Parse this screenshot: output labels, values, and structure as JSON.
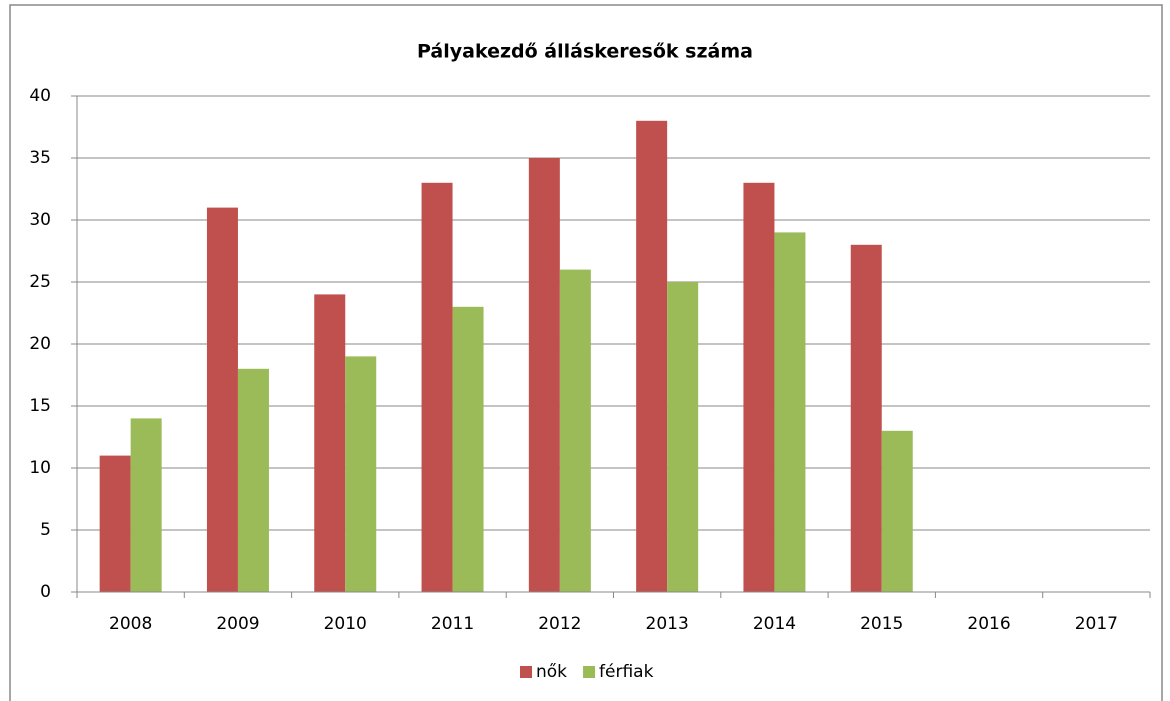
{
  "chart_data": {
    "type": "bar",
    "title": "Pályakezdő álláskeresők száma",
    "categories": [
      "2008",
      "2009",
      "2010",
      "2011",
      "2012",
      "2013",
      "2014",
      "2015",
      "2016",
      "2017"
    ],
    "series": [
      {
        "name": "nők",
        "color": "#c0504d",
        "values": [
          11,
          31,
          24,
          33,
          35,
          38,
          33,
          28,
          null,
          null
        ]
      },
      {
        "name": "férfiak",
        "color": "#9bbb59",
        "values": [
          14,
          18,
          19,
          23,
          26,
          25,
          29,
          13,
          null,
          null
        ]
      }
    ],
    "ylim": [
      0,
      40
    ],
    "yticks": [
      0,
      5,
      10,
      15,
      20,
      25,
      30,
      35,
      40
    ],
    "grid": true,
    "legend": "bottom"
  }
}
